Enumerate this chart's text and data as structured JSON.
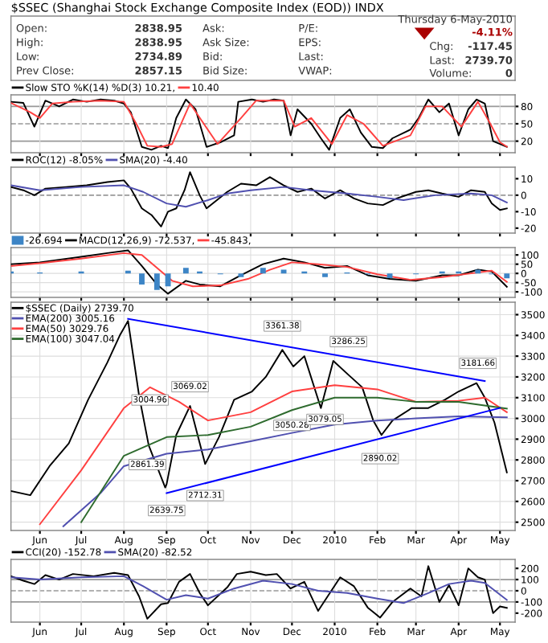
{
  "chart_data": [
    {
      "type": "other",
      "title": "$SSEC (Shanghai Stock Exchange Composite Index (EOD)) INDX",
      "annotations": [
        "Open:",
        "2838.95",
        "High:",
        "2838.95",
        "Low:",
        "2734.89",
        "Prev Close:",
        "2857.15",
        "Ask:",
        "Ask Size:",
        "Bid:",
        "Bid Size:",
        "P/E:",
        "EPS:",
        "Last:",
        "VWAP:",
        "Thursday 6-May-2010",
        "-4.11%",
        "Chg:",
        "-117.45",
        "Last:",
        "2739.70",
        "Volume:",
        "0"
      ]
    },
    {
      "type": "line",
      "tick_labels": "y",
      "grid": "x",
      "legend": "top left",
      "xlim": [
        "2009-05-11",
        "2010-05-12"
      ],
      "xticks": [
        {
          "value": "2009-06-01",
          "label": null
        },
        {
          "value": "2009-07-01",
          "label": null
        },
        {
          "value": "2009-08-01",
          "label": null
        },
        {
          "value": "2009-09-01",
          "label": null
        },
        {
          "value": "2009-10-01",
          "label": null
        },
        {
          "value": "2009-11-01",
          "label": null
        },
        {
          "value": "2009-12-01",
          "label": null
        },
        {
          "value": "2010-01-01",
          "label": null
        },
        {
          "value": "2010-02-01",
          "label": null
        },
        {
          "value": "2010-03-01",
          "label": null
        },
        {
          "value": "2010-04-01",
          "label": null
        },
        {
          "value": "2010-05-01",
          "label": null
        }
      ],
      "ylim": [
        0,
        100
      ],
      "yticks": [
        20,
        50,
        80
      ],
      "ref_lines": [
        {
          "axis": "y",
          "value": 80,
          "color": "#999999",
          "line_style": "solid"
        },
        {
          "axis": "y",
          "value": 50,
          "color": "#999999",
          "line_style": "dashed"
        },
        {
          "axis": "y",
          "value": 20,
          "color": "#999999",
          "line_style": "solid"
        }
      ],
      "series": [
        {
          "name": "Slow STO %K(14) %D(3) 10.21,",
          "color": "#000000",
          "x": [
            "2009-05-11",
            "2009-05-20",
            "2009-05-28",
            "2009-06-05",
            "2009-06-15",
            "2009-06-25",
            "2009-07-05",
            "2009-07-15",
            "2009-07-25",
            "2009-08-01",
            "2009-08-06",
            "2009-08-14",
            "2009-08-21",
            "2009-08-28",
            "2009-09-02",
            "2009-09-08",
            "2009-09-15",
            "2009-09-22",
            "2009-09-30",
            "2009-10-10",
            "2009-10-20",
            "2009-10-23",
            "2009-11-02",
            "2009-11-10",
            "2009-11-18",
            "2009-11-25",
            "2009-11-30",
            "2009-12-05",
            "2009-12-15",
            "2009-12-22",
            "2009-12-28",
            "2010-01-05",
            "2010-01-12",
            "2010-01-20",
            "2010-01-28",
            "2010-02-05",
            "2010-02-12",
            "2010-02-25",
            "2010-03-03",
            "2010-03-10",
            "2010-03-18",
            "2010-03-25",
            "2010-04-01",
            "2010-04-08",
            "2010-04-14",
            "2010-04-20",
            "2010-04-26",
            "2010-05-01",
            "2010-05-06"
          ],
          "values": [
            88,
            86,
            45,
            90,
            80,
            92,
            88,
            92,
            90,
            85,
            70,
            10,
            5,
            12,
            8,
            60,
            92,
            75,
            10,
            18,
            30,
            88,
            92,
            88,
            92,
            90,
            30,
            75,
            50,
            25,
            5,
            60,
            75,
            35,
            10,
            8,
            25,
            40,
            60,
            92,
            70,
            85,
            30,
            75,
            92,
            85,
            20,
            15,
            10.21
          ]
        },
        {
          "name": "10.40",
          "color": "#ff4040",
          "x": [
            "2009-05-11",
            "2009-05-25",
            "2009-06-01",
            "2009-06-10",
            "2009-06-25",
            "2009-07-15",
            "2009-08-01",
            "2009-08-10",
            "2009-08-18",
            "2009-08-28",
            "2009-09-05",
            "2009-09-18",
            "2009-09-28",
            "2009-10-08",
            "2009-10-25",
            "2009-11-05",
            "2009-11-25",
            "2009-12-03",
            "2009-12-15",
            "2009-12-30",
            "2010-01-10",
            "2010-01-22",
            "2010-02-05",
            "2010-02-25",
            "2010-03-08",
            "2010-03-20",
            "2010-04-03",
            "2010-04-15",
            "2010-04-24",
            "2010-05-01",
            "2010-05-06"
          ],
          "values": [
            86,
            70,
            60,
            85,
            88,
            90,
            88,
            50,
            12,
            10,
            15,
            85,
            50,
            15,
            60,
            90,
            90,
            45,
            60,
            15,
            65,
            50,
            12,
            30,
            80,
            80,
            45,
            88,
            50,
            18,
            10.4
          ]
        }
      ]
    },
    {
      "type": "line",
      "tick_labels": "y",
      "grid": "x",
      "legend": "top left",
      "xlim": [
        "2009-05-11",
        "2010-05-12"
      ],
      "xticks": [
        {
          "value": "2009-06-01",
          "label": null
        },
        {
          "value": "2009-07-01",
          "label": null
        },
        {
          "value": "2009-08-01",
          "label": null
        },
        {
          "value": "2009-09-01",
          "label": null
        },
        {
          "value": "2009-10-01",
          "label": null
        },
        {
          "value": "2009-11-01",
          "label": null
        },
        {
          "value": "2009-12-01",
          "label": null
        },
        {
          "value": "2010-01-01",
          "label": null
        },
        {
          "value": "2010-02-01",
          "label": null
        },
        {
          "value": "2010-03-01",
          "label": null
        },
        {
          "value": "2010-04-01",
          "label": null
        },
        {
          "value": "2010-05-01",
          "label": null
        }
      ],
      "ylim": [
        -23,
        17
      ],
      "yticks": [
        -20,
        -10,
        0,
        10
      ],
      "ref_lines": [
        {
          "axis": "y",
          "value": 0,
          "color": "#999999",
          "line_style": "dashed"
        }
      ],
      "series": [
        {
          "name": "ROC(12) -8.05%",
          "color": "#000000",
          "x": [
            "2009-05-11",
            "2009-05-20",
            "2009-05-28",
            "2009-06-05",
            "2009-06-20",
            "2009-07-05",
            "2009-07-20",
            "2009-08-01",
            "2009-08-06",
            "2009-08-14",
            "2009-08-21",
            "2009-08-28",
            "2009-09-02",
            "2009-09-08",
            "2009-09-14",
            "2009-09-18",
            "2009-09-25",
            "2009-09-30",
            "2009-10-15",
            "2009-10-25",
            "2009-11-05",
            "2009-11-15",
            "2009-11-25",
            "2009-12-05",
            "2009-12-15",
            "2009-12-25",
            "2010-01-05",
            "2010-01-15",
            "2010-01-25",
            "2010-02-05",
            "2010-02-15",
            "2010-03-01",
            "2010-03-10",
            "2010-03-20",
            "2010-04-01",
            "2010-04-10",
            "2010-04-20",
            "2010-04-25",
            "2010-05-01",
            "2010-05-06"
          ],
          "values": [
            5,
            3,
            0,
            4,
            5,
            6,
            8,
            9,
            4,
            -8,
            -12,
            -19,
            -10,
            -8,
            3,
            14,
            0,
            -8,
            2,
            7,
            6,
            11,
            6,
            2,
            4,
            -2,
            3,
            -2,
            -5,
            -6,
            -2,
            2,
            3,
            1,
            -1,
            3,
            2,
            -5,
            -9,
            -8.05
          ]
        },
        {
          "name": "SMA(20) -4.40",
          "color": "#5050b0",
          "x": [
            "2009-05-11",
            "2009-06-01",
            "2009-07-01",
            "2009-08-01",
            "2009-08-15",
            "2009-09-01",
            "2009-09-15",
            "2009-10-01",
            "2009-10-15",
            "2009-11-01",
            "2009-11-25",
            "2009-12-15",
            "2010-01-10",
            "2010-02-01",
            "2010-02-20",
            "2010-03-15",
            "2010-04-10",
            "2010-04-25",
            "2010-05-06"
          ],
          "values": [
            6,
            3,
            5,
            6,
            2,
            -5,
            -7,
            -3,
            1,
            3,
            5,
            3,
            1,
            -1,
            -3,
            0,
            1,
            0,
            -4.4
          ]
        }
      ]
    },
    {
      "type": "line",
      "tick_labels": "y",
      "grid": true,
      "legend": "top left",
      "xlim": [
        "2009-05-11",
        "2010-05-12"
      ],
      "xticks": [
        {
          "value": "2009-06-01",
          "label": null
        },
        {
          "value": "2009-07-01",
          "label": null
        },
        {
          "value": "2009-08-01",
          "label": null
        },
        {
          "value": "2009-09-01",
          "label": null
        },
        {
          "value": "2009-10-01",
          "label": null
        },
        {
          "value": "2009-11-01",
          "label": null
        },
        {
          "value": "2009-12-01",
          "label": null
        },
        {
          "value": "2010-01-01",
          "label": null
        },
        {
          "value": "2010-02-01",
          "label": null
        },
        {
          "value": "2010-03-01",
          "label": null
        },
        {
          "value": "2010-04-01",
          "label": null
        },
        {
          "value": "2010-05-01",
          "label": null
        }
      ],
      "ylim": [
        -130,
        140
      ],
      "yticks": [
        -100,
        -50,
        0,
        50,
        100
      ],
      "series": [
        {
          "name": "-26.694",
          "type": "bar",
          "color": "#3d85c6",
          "x": [
            "2009-05-11",
            "2009-06-01",
            "2009-07-01",
            "2009-07-20",
            "2009-08-04",
            "2009-08-14",
            "2009-08-25",
            "2009-09-02",
            "2009-09-15",
            "2009-09-25",
            "2009-10-10",
            "2009-10-25",
            "2009-11-10",
            "2009-11-25",
            "2009-12-10",
            "2009-12-25",
            "2010-01-10",
            "2010-01-25",
            "2010-02-10",
            "2010-03-01",
            "2010-03-20",
            "2010-04-01",
            "2010-04-15",
            "2010-04-25",
            "2010-05-06"
          ],
          "values": [
            10,
            5,
            10,
            0,
            15,
            -60,
            -90,
            -70,
            30,
            10,
            -5,
            -20,
            30,
            20,
            10,
            -20,
            5,
            -5,
            -25,
            -5,
            10,
            10,
            20,
            -5,
            -26.694
          ]
        },
        {
          "name": "MACD(12,26,9) -72.537,",
          "color": "#000000",
          "x": [
            "2009-05-11",
            "2009-06-01",
            "2009-07-01",
            "2009-07-20",
            "2009-08-04",
            "2009-08-14",
            "2009-08-25",
            "2009-09-02",
            "2009-09-15",
            "2009-09-25",
            "2009-10-10",
            "2009-10-25",
            "2009-11-10",
            "2009-11-25",
            "2009-12-10",
            "2009-12-25",
            "2010-01-10",
            "2010-01-25",
            "2010-02-10",
            "2010-03-01",
            "2010-03-20",
            "2010-04-01",
            "2010-04-15",
            "2010-04-25",
            "2010-05-06"
          ],
          "values": [
            50,
            60,
            90,
            110,
            125,
            40,
            -60,
            -110,
            -40,
            -60,
            -70,
            -10,
            50,
            80,
            60,
            30,
            40,
            -10,
            -30,
            -40,
            -10,
            -10,
            20,
            10,
            -72.537
          ]
        },
        {
          "name": "-45.843,",
          "color": "#ff4040",
          "x": [
            "2009-05-11",
            "2009-06-01",
            "2009-07-01",
            "2009-08-01",
            "2009-08-14",
            "2009-08-25",
            "2009-09-05",
            "2009-09-20",
            "2009-10-10",
            "2009-10-30",
            "2009-11-15",
            "2009-12-01",
            "2009-12-20",
            "2010-01-10",
            "2010-02-01",
            "2010-02-25",
            "2010-03-20",
            "2010-04-10",
            "2010-04-25",
            "2010-05-06"
          ],
          "values": [
            40,
            55,
            80,
            110,
            100,
            30,
            -40,
            -70,
            -65,
            -30,
            20,
            60,
            50,
            35,
            -5,
            -35,
            -20,
            0,
            15,
            -45.843
          ]
        }
      ]
    },
    {
      "type": "line",
      "grid": true,
      "legend": "top left",
      "xlim": [
        "2009-05-11",
        "2010-05-12"
      ],
      "xticks": [
        {
          "value": "2009-06-01",
          "label": "Jun"
        },
        {
          "value": "2009-07-01",
          "label": "Jul"
        },
        {
          "value": "2009-08-01",
          "label": "Aug"
        },
        {
          "value": "2009-09-01",
          "label": "Sep"
        },
        {
          "value": "2009-10-01",
          "label": "Oct"
        },
        {
          "value": "2009-11-01",
          "label": "Nov"
        },
        {
          "value": "2009-12-01",
          "label": "Dec"
        },
        {
          "value": "2010-01-01",
          "label": "2010"
        },
        {
          "value": "2010-02-01",
          "label": "Feb"
        },
        {
          "value": "2010-03-01",
          "label": "Mar"
        },
        {
          "value": "2010-04-01",
          "label": "Apr"
        },
        {
          "value": "2010-05-01",
          "label": "May"
        }
      ],
      "ylim": [
        2460,
        3560
      ],
      "yticks": [
        2500,
        2600,
        2700,
        2800,
        2900,
        3000,
        3100,
        3200,
        3300,
        3400,
        3500
      ],
      "annotations": [
        {
          "text": "3004.96",
          "x": "2009-08-20",
          "y": 3004.96
        },
        {
          "text": "3069.02",
          "x": "2009-09-18",
          "y": 3069.02
        },
        {
          "text": "2861.39",
          "x": "2009-08-18",
          "y": 2861.39
        },
        {
          "text": "2639.75",
          "x": "2009-09-01",
          "y": 2639.75
        },
        {
          "text": "2712.31",
          "x": "2009-09-29",
          "y": 2712.31
        },
        {
          "text": "3361.38",
          "x": "2009-11-24",
          "y": 3361.38
        },
        {
          "text": "3050.28",
          "x": "2009-12-01",
          "y": 3050.28
        },
        {
          "text": "3079.05",
          "x": "2009-12-25",
          "y": 3079.05
        },
        {
          "text": "3286.25",
          "x": "2010-01-11",
          "y": 3286.25
        },
        {
          "text": "2890.02",
          "x": "2010-02-03",
          "y": 2890.02
        },
        {
          "text": "3181.66",
          "x": "2010-04-15",
          "y": 3181.66
        }
      ],
      "series": [
        {
          "name": "$SSEC (Daily) 2739.70",
          "color": "#000000",
          "x": [
            "2009-05-11",
            "2009-05-25",
            "2009-06-08",
            "2009-06-22",
            "2009-07-06",
            "2009-07-20",
            "2009-07-29",
            "2009-08-04",
            "2009-08-12",
            "2009-08-19",
            "2009-08-31",
            "2009-09-01",
            "2009-09-08",
            "2009-09-18",
            "2009-09-29",
            "2009-10-09",
            "2009-10-20",
            "2009-11-02",
            "2009-11-12",
            "2009-11-24",
            "2009-12-02",
            "2009-12-10",
            "2009-12-22",
            "2009-12-31",
            "2010-01-11",
            "2010-01-21",
            "2010-01-29",
            "2010-02-04",
            "2010-02-12",
            "2010-02-26",
            "2010-03-10",
            "2010-03-22",
            "2010-04-01",
            "2010-04-14",
            "2010-04-20",
            "2010-04-27",
            "2010-05-06"
          ],
          "values": [
            2650,
            2630,
            2770,
            2880,
            3090,
            3270,
            3400,
            3470,
            3110,
            2870,
            2667,
            2683,
            2920,
            3060,
            2780,
            2910,
            3090,
            3130,
            3200,
            3330,
            3250,
            3300,
            3050,
            3277,
            3210,
            3150,
            2990,
            2920,
            2990,
            3050,
            3050,
            3090,
            3130,
            3170,
            3100,
            2980,
            2739.7
          ]
        },
        {
          "name": "EMA(200) 3005.16",
          "color": "#5050b0",
          "x": [
            "2009-06-18",
            "2009-07-15",
            "2009-08-01",
            "2009-09-01",
            "2009-10-01",
            "2009-11-01",
            "2009-12-01",
            "2010-01-01",
            "2010-02-01",
            "2010-03-01",
            "2010-04-01",
            "2010-05-06"
          ],
          "values": [
            2480,
            2640,
            2770,
            2830,
            2850,
            2890,
            2930,
            2970,
            2990,
            3000,
            3010,
            3005.16
          ]
        },
        {
          "name": "EMA(50) 3029.76",
          "color": "#ff4040",
          "x": [
            "2009-06-01",
            "2009-07-01",
            "2009-08-01",
            "2009-08-20",
            "2009-09-10",
            "2009-10-01",
            "2009-11-01",
            "2009-12-01",
            "2010-01-01",
            "2010-02-01",
            "2010-03-01",
            "2010-04-01",
            "2010-04-20",
            "2010-05-06"
          ],
          "values": [
            2490,
            2750,
            3050,
            3150,
            3080,
            2990,
            3030,
            3130,
            3160,
            3140,
            3080,
            3085,
            3100,
            3029.76
          ]
        },
        {
          "name": "EMA(100) 3047.04",
          "color": "#2e6b2e",
          "x": [
            "2009-07-01",
            "2009-08-01",
            "2009-09-01",
            "2009-10-01",
            "2009-11-01",
            "2009-12-01",
            "2010-01-01",
            "2010-02-01",
            "2010-03-01",
            "2010-04-01",
            "2010-05-06"
          ],
          "values": [
            2500,
            2820,
            2910,
            2920,
            2960,
            3040,
            3100,
            3100,
            3080,
            3080,
            3047.04
          ]
        },
        {
          "color": "#0000ff",
          "x": [
            "2009-08-04",
            "2010-04-20"
          ],
          "values": [
            3480,
            3180
          ]
        },
        {
          "color": "#0000ff",
          "x": [
            "2009-09-01",
            "2010-05-01"
          ],
          "values": [
            2640,
            3050
          ]
        }
      ]
    },
    {
      "type": "line",
      "grid": "x",
      "legend": "top left",
      "xlim": [
        "2009-05-11",
        "2010-05-12"
      ],
      "xticks": [
        {
          "value": "2009-06-01",
          "label": "Jun"
        },
        {
          "value": "2009-07-01",
          "label": "Jul"
        },
        {
          "value": "2009-08-01",
          "label": "Aug"
        },
        {
          "value": "2009-09-01",
          "label": "Sep"
        },
        {
          "value": "2009-10-01",
          "label": "Oct"
        },
        {
          "value": "2009-11-01",
          "label": "Nov"
        },
        {
          "value": "2009-12-01",
          "label": "Dec"
        },
        {
          "value": "2010-01-01",
          "label": "2010"
        },
        {
          "value": "2010-02-01",
          "label": "Feb"
        },
        {
          "value": "2010-03-01",
          "label": "Mar"
        },
        {
          "value": "2010-04-01",
          "label": "Apr"
        },
        {
          "value": "2010-05-01",
          "label": "May"
        }
      ],
      "ylim": [
        -280,
        280
      ],
      "yticks": [
        -200,
        -100,
        0,
        100,
        200
      ],
      "ref_lines": [
        {
          "axis": "y",
          "value": 100,
          "color": "#999999",
          "line_style": "solid"
        },
        {
          "axis": "y",
          "value": 0,
          "color": "#999999",
          "line_style": "dashed"
        },
        {
          "axis": "y",
          "value": -100,
          "color": "#999999",
          "line_style": "solid"
        }
      ],
      "series": [
        {
          "name": "CCI(20) -152.78",
          "color": "#000000",
          "x": [
            "2009-05-11",
            "2009-05-20",
            "2009-05-28",
            "2009-06-05",
            "2009-06-15",
            "2009-06-25",
            "2009-07-10",
            "2009-07-25",
            "2009-08-04",
            "2009-08-12",
            "2009-08-18",
            "2009-08-28",
            "2009-09-02",
            "2009-09-10",
            "2009-09-18",
            "2009-09-25",
            "2009-10-01",
            "2009-10-15",
            "2009-10-22",
            "2009-11-01",
            "2009-11-12",
            "2009-11-20",
            "2009-11-30",
            "2009-12-10",
            "2009-12-20",
            "2010-01-05",
            "2010-01-15",
            "2010-01-25",
            "2010-02-03",
            "2010-02-12",
            "2010-02-25",
            "2010-03-05",
            "2010-03-10",
            "2010-03-18",
            "2010-03-25",
            "2010-04-01",
            "2010-04-08",
            "2010-04-15",
            "2010-04-20",
            "2010-04-26",
            "2010-05-01",
            "2010-05-06"
          ],
          "values": [
            130,
            90,
            60,
            140,
            100,
            150,
            130,
            160,
            140,
            -50,
            -250,
            -120,
            -110,
            80,
            150,
            -20,
            -130,
            30,
            150,
            170,
            140,
            150,
            20,
            80,
            -180,
            120,
            40,
            -150,
            -240,
            -100,
            20,
            -50,
            220,
            -100,
            50,
            -130,
            200,
            120,
            100,
            -200,
            -140,
            -152.78
          ]
        },
        {
          "name": "SMA(20) -82.52",
          "color": "#5050b0",
          "x": [
            "2009-05-11",
            "2009-06-01",
            "2009-07-01",
            "2009-08-01",
            "2009-08-15",
            "2009-09-01",
            "2009-09-15",
            "2009-10-01",
            "2009-10-20",
            "2009-11-10",
            "2009-12-01",
            "2009-12-20",
            "2010-01-10",
            "2010-02-01",
            "2010-02-20",
            "2010-03-10",
            "2010-03-25",
            "2010-04-10",
            "2010-04-20",
            "2010-05-06"
          ],
          "values": [
            120,
            100,
            120,
            130,
            40,
            -80,
            -40,
            -70,
            20,
            90,
            60,
            0,
            -20,
            -70,
            -110,
            -20,
            60,
            90,
            70,
            -82.52
          ]
        }
      ]
    }
  ]
}
